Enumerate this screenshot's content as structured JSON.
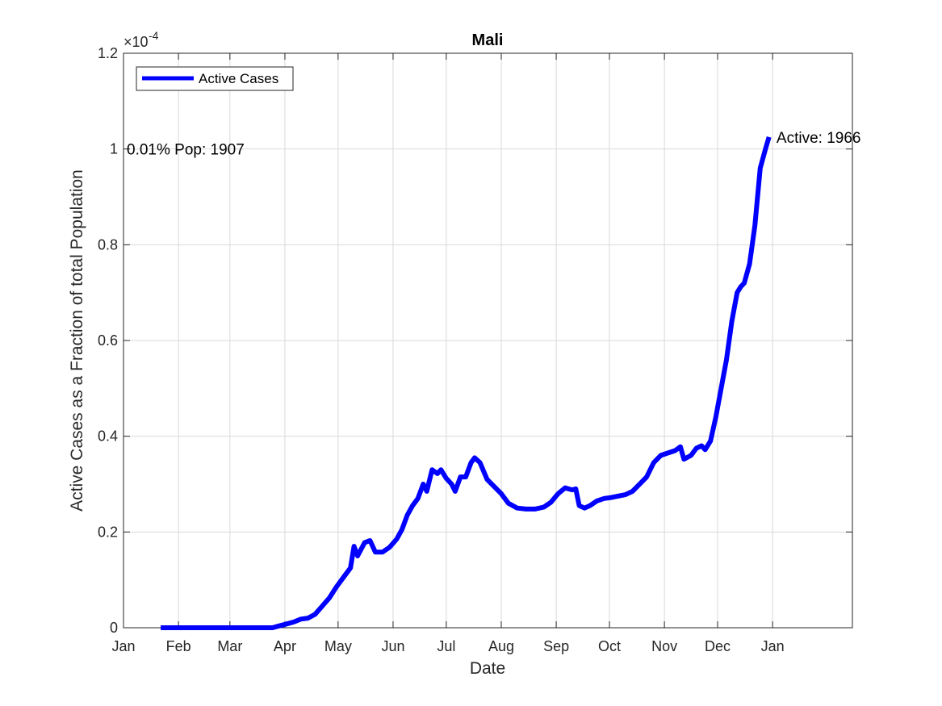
{
  "chart_data": {
    "type": "line",
    "title": "Mali",
    "xlabel": "Date",
    "ylabel": "Active Cases as a Fraction of total Population",
    "y_exponent_label": "×10",
    "y_exponent_power": "-4",
    "x_tick_labels": [
      "Jan",
      "Feb",
      "Mar",
      "Apr",
      "May",
      "Jun",
      "Jul",
      "Aug",
      "Sep",
      "Oct",
      "Nov",
      "Dec",
      "Jan"
    ],
    "y_tick_labels": [
      "0",
      "0.2",
      "0.4",
      "0.6",
      "0.8",
      "1",
      "1.2"
    ],
    "ylim": [
      0,
      1.2
    ],
    "y_units_multiplier": 0.0001,
    "grid": true,
    "legend_position": "top-left",
    "series": [
      {
        "name": "Active Cases",
        "color": "#0000ff",
        "points": [
          [
            "2020-01-22",
            0
          ],
          [
            "2020-02-01",
            0
          ],
          [
            "2020-02-15",
            0
          ],
          [
            "2020-03-01",
            0
          ],
          [
            "2020-03-15",
            0
          ],
          [
            "2020-03-25",
            0
          ],
          [
            "2020-03-28",
            0.003
          ],
          [
            "2020-04-02",
            0.008
          ],
          [
            "2020-04-06",
            0.012
          ],
          [
            "2020-04-10",
            0.018
          ],
          [
            "2020-04-14",
            0.02
          ],
          [
            "2020-04-18",
            0.028
          ],
          [
            "2020-04-22",
            0.045
          ],
          [
            "2020-04-26",
            0.062
          ],
          [
            "2020-04-30",
            0.085
          ],
          [
            "2020-05-04",
            0.105
          ],
          [
            "2020-05-08",
            0.125
          ],
          [
            "2020-05-10",
            0.17
          ],
          [
            "2020-05-12",
            0.15
          ],
          [
            "2020-05-16",
            0.178
          ],
          [
            "2020-05-19",
            0.182
          ],
          [
            "2020-05-22",
            0.158
          ],
          [
            "2020-05-26",
            0.158
          ],
          [
            "2020-05-30",
            0.168
          ],
          [
            "2020-06-03",
            0.185
          ],
          [
            "2020-06-06",
            0.205
          ],
          [
            "2020-06-09",
            0.235
          ],
          [
            "2020-06-12",
            0.255
          ],
          [
            "2020-06-15",
            0.27
          ],
          [
            "2020-06-18",
            0.3
          ],
          [
            "2020-06-20",
            0.285
          ],
          [
            "2020-06-23",
            0.33
          ],
          [
            "2020-06-26",
            0.322
          ],
          [
            "2020-06-28",
            0.33
          ],
          [
            "2020-07-01",
            0.312
          ],
          [
            "2020-07-04",
            0.3
          ],
          [
            "2020-07-06",
            0.285
          ],
          [
            "2020-07-09",
            0.315
          ],
          [
            "2020-07-12",
            0.315
          ],
          [
            "2020-07-15",
            0.345
          ],
          [
            "2020-07-17",
            0.355
          ],
          [
            "2020-07-20",
            0.345
          ],
          [
            "2020-07-24",
            0.31
          ],
          [
            "2020-07-28",
            0.295
          ],
          [
            "2020-08-01",
            0.28
          ],
          [
            "2020-08-05",
            0.26
          ],
          [
            "2020-08-10",
            0.25
          ],
          [
            "2020-08-15",
            0.248
          ],
          [
            "2020-08-20",
            0.248
          ],
          [
            "2020-08-25",
            0.252
          ],
          [
            "2020-08-29",
            0.262
          ],
          [
            "2020-09-02",
            0.28
          ],
          [
            "2020-09-06",
            0.292
          ],
          [
            "2020-09-10",
            0.288
          ],
          [
            "2020-09-12",
            0.29
          ],
          [
            "2020-09-14",
            0.255
          ],
          [
            "2020-09-17",
            0.25
          ],
          [
            "2020-09-20",
            0.255
          ],
          [
            "2020-09-24",
            0.265
          ],
          [
            "2020-09-28",
            0.27
          ],
          [
            "2020-10-02",
            0.272
          ],
          [
            "2020-10-06",
            0.275
          ],
          [
            "2020-10-10",
            0.278
          ],
          [
            "2020-10-14",
            0.285
          ],
          [
            "2020-10-18",
            0.3
          ],
          [
            "2020-10-22",
            0.315
          ],
          [
            "2020-10-26",
            0.345
          ],
          [
            "2020-10-30",
            0.36
          ],
          [
            "2020-11-03",
            0.365
          ],
          [
            "2020-11-07",
            0.37
          ],
          [
            "2020-11-10",
            0.378
          ],
          [
            "2020-11-12",
            0.352
          ],
          [
            "2020-11-16",
            0.36
          ],
          [
            "2020-11-19",
            0.375
          ],
          [
            "2020-11-22",
            0.38
          ],
          [
            "2020-11-24",
            0.372
          ],
          [
            "2020-11-27",
            0.39
          ],
          [
            "2020-11-30",
            0.44
          ],
          [
            "2020-12-03",
            0.5
          ],
          [
            "2020-12-06",
            0.56
          ],
          [
            "2020-12-09",
            0.64
          ],
          [
            "2020-12-12",
            0.7
          ],
          [
            "2020-12-14",
            0.712
          ],
          [
            "2020-12-16",
            0.72
          ],
          [
            "2020-12-19",
            0.76
          ],
          [
            "2020-12-22",
            0.84
          ],
          [
            "2020-12-25",
            0.96
          ],
          [
            "2020-12-28",
            1.0
          ],
          [
            "2020-12-30",
            1.025
          ]
        ]
      }
    ],
    "annotations": [
      {
        "text": "0.01% Pop: 1907",
        "x": "2020-01-01",
        "y": 1.0
      },
      {
        "text": "Active: 1966",
        "x": "2020-12-31",
        "y": 1.025
      }
    ]
  }
}
